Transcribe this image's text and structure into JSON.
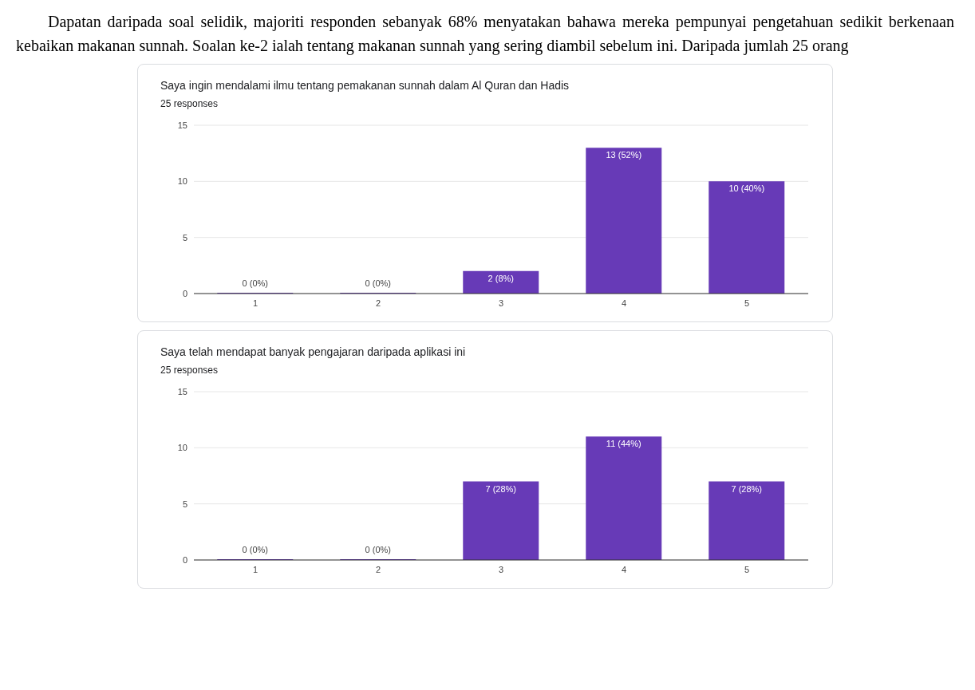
{
  "chart_data": [
    {
      "type": "other",
      "annotations": [
        "Dapatan daripada soal selidik, majoriti responden sebanyak 68% menyatakan bahawa mereka pempunyai pengetahuan sedikit berkenaan kebaikan makanan sunnah. Soalan ke-2 ialah tentang makanan sunnah yang sering diambil sebelum ini. Daripada jumlah 25 orang"
      ]
    },
    {
      "type": "bar",
      "title": "Saya ingin mendalami ilmu tentang pemakanan sunnah dalam Al Quran dan Hadis",
      "subtitle": "25 responses",
      "categories": [
        "1",
        "2",
        "3",
        "4",
        "5"
      ],
      "values": [
        0,
        0,
        2,
        13,
        10
      ],
      "value_labels": [
        "0 (0%)",
        "0 (0%)",
        "2 (8%)",
        "13 (52%)",
        "10 (40%)"
      ],
      "color": "#673ab7",
      "ylim": [
        0,
        15
      ],
      "yticks": [
        0,
        5,
        10,
        15
      ],
      "grid": "y"
    },
    {
      "type": "bar",
      "title": "Saya telah mendapat banyak pengajaran daripada aplikasi ini",
      "subtitle": "25 responses",
      "categories": [
        "1",
        "2",
        "3",
        "4",
        "5"
      ],
      "values": [
        0,
        0,
        7,
        11,
        7
      ],
      "value_labels": [
        "0 (0%)",
        "0 (0%)",
        "7 (28%)",
        "11 (44%)",
        "7 (28%)"
      ],
      "color": "#673ab7",
      "ylim": [
        0,
        15
      ],
      "yticks": [
        0,
        5,
        10,
        15
      ],
      "grid": "y"
    }
  ]
}
